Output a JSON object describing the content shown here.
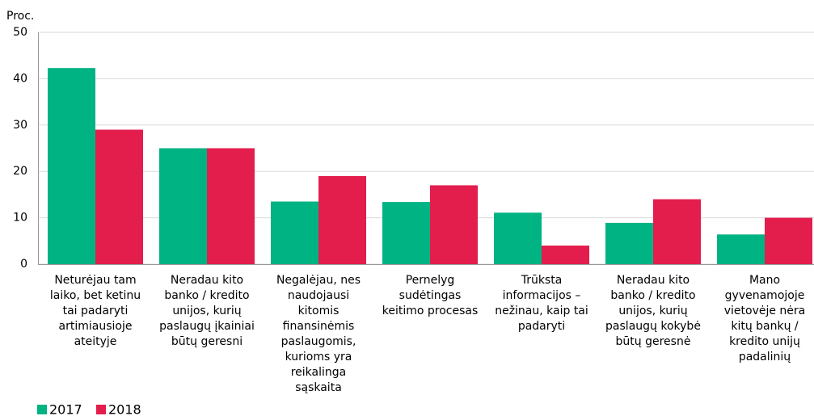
{
  "chart_data": {
    "type": "bar",
    "y_label": "Proc.",
    "categories": [
      "Neturėjau tam\nlaiko, bet ketinu\ntai padaryti\nartimiausioje\nateityje",
      "Neradau kito\nbanko / kredito\nunijos, kurių\npaslaugų įkainiai\nbūtų geresni",
      "Negalėjau, nes\nnaudojausi\nkitomis\nfinansinėmis\npaslaugomis,\nkurioms yra\nreikalinga\nsąskaita",
      "Pernelyg\nsudėtingas\nkeitimo procesas",
      "Trūksta\ninformacijos –\nnežinau, kaip tai\npadaryti",
      "Neradau kito\nbanko / kredito\nunijos, kurių\npaslaugų kokybė\nbūtų geresnė",
      "Mano\ngyvenamojoje\nvietovėje nėra\nkitų bankų /\nkredito unijų\npadalinių"
    ],
    "series": [
      {
        "name": "2017",
        "color": "#00b383",
        "values": [
          42.3,
          25,
          13.5,
          13.4,
          11.1,
          8.9,
          6.4
        ]
      },
      {
        "name": "2018",
        "color": "#e31d4c",
        "values": [
          29,
          25,
          19,
          17,
          4,
          14,
          10
        ]
      }
    ],
    "ylim": [
      0,
      50
    ],
    "yticks": [
      0,
      10,
      20,
      30,
      40,
      50
    ],
    "grid": true
  }
}
